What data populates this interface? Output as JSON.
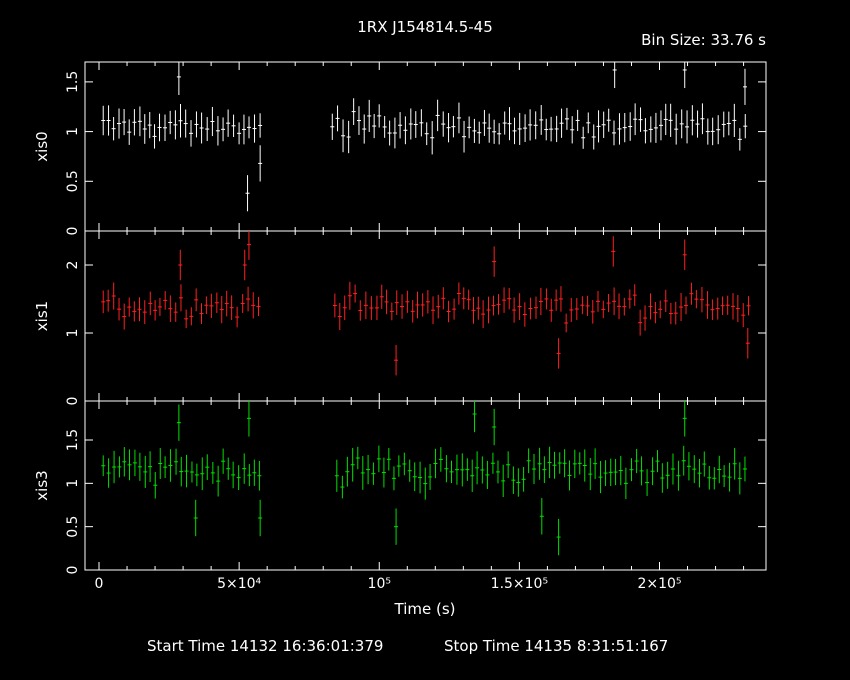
{
  "header": {
    "title": "1RX J154814.5-45",
    "bin_size": "Bin Size: 33.76 s"
  },
  "footer": {
    "start_time": "Start Time 14132 16:36:01:379",
    "stop_time": "Stop Time 14135  8:31:51:167"
  },
  "chart_data": [
    {
      "type": "scatter",
      "ylabel": "xis0",
      "color": "#ffffff",
      "xlim": [
        -5000,
        238000
      ],
      "ylim": [
        0,
        1.7
      ],
      "yticks": [
        0,
        0.5,
        1,
        1.5
      ],
      "ytick_labels": [
        "0",
        "0.5",
        "1",
        "1.5"
      ],
      "gap": [
        58000,
        83000
      ],
      "base_level": 1.05,
      "noise": 0.12,
      "err": 0.13,
      "spikes": [
        {
          "x": 28500,
          "y": 1.55
        },
        {
          "x": 53000,
          "y": 0.38
        },
        {
          "x": 57500,
          "y": 0.68
        },
        {
          "x": 184000,
          "y": 1.62
        },
        {
          "x": 209000,
          "y": 1.62
        },
        {
          "x": 230500,
          "y": 1.45
        }
      ]
    },
    {
      "type": "scatter",
      "ylabel": "xis1",
      "color": "#ff2020",
      "xlim": [
        -5000,
        238000
      ],
      "ylim": [
        0,
        2.5
      ],
      "yticks": [
        0,
        1,
        2
      ],
      "ytick_labels": [
        "0",
        "1",
        "2"
      ],
      "gap": [
        58000,
        83000
      ],
      "base_level": 1.4,
      "noise": 0.17,
      "err": 0.16,
      "spikes": [
        {
          "x": 29000,
          "y": 2.0
        },
        {
          "x": 52000,
          "y": 2.0
        },
        {
          "x": 53500,
          "y": 2.3
        },
        {
          "x": 106000,
          "y": 0.6
        },
        {
          "x": 141000,
          "y": 2.05
        },
        {
          "x": 164000,
          "y": 0.7
        },
        {
          "x": 183500,
          "y": 2.2
        },
        {
          "x": 209000,
          "y": 2.15
        },
        {
          "x": 231500,
          "y": 0.85
        }
      ]
    },
    {
      "type": "scatter",
      "ylabel": "xis3",
      "color": "#00e000",
      "xlim": [
        -5000,
        238000
      ],
      "ylim": [
        0,
        1.95
      ],
      "yticks": [
        0,
        0.5,
        1,
        1.5
      ],
      "ytick_labels": [
        "0",
        "0.5",
        "1",
        "1.5"
      ],
      "gap": [
        58000,
        83000
      ],
      "base_level": 1.15,
      "noise": 0.15,
      "err": 0.15,
      "spikes": [
        {
          "x": 28500,
          "y": 1.7
        },
        {
          "x": 34500,
          "y": 0.6
        },
        {
          "x": 53500,
          "y": 1.75
        },
        {
          "x": 57500,
          "y": 0.6
        },
        {
          "x": 106000,
          "y": 0.5
        },
        {
          "x": 134000,
          "y": 1.8
        },
        {
          "x": 141000,
          "y": 1.65
        },
        {
          "x": 158000,
          "y": 0.62
        },
        {
          "x": 164000,
          "y": 0.38
        },
        {
          "x": 209000,
          "y": 1.75
        }
      ]
    }
  ],
  "x_axis": {
    "label": "Time (s)",
    "ticks": [
      0,
      50000,
      100000,
      150000,
      200000
    ],
    "tick_labels": [
      "0",
      "5×10⁴",
      "10⁵",
      "1.5×10⁵",
      "2×10⁵"
    ]
  }
}
